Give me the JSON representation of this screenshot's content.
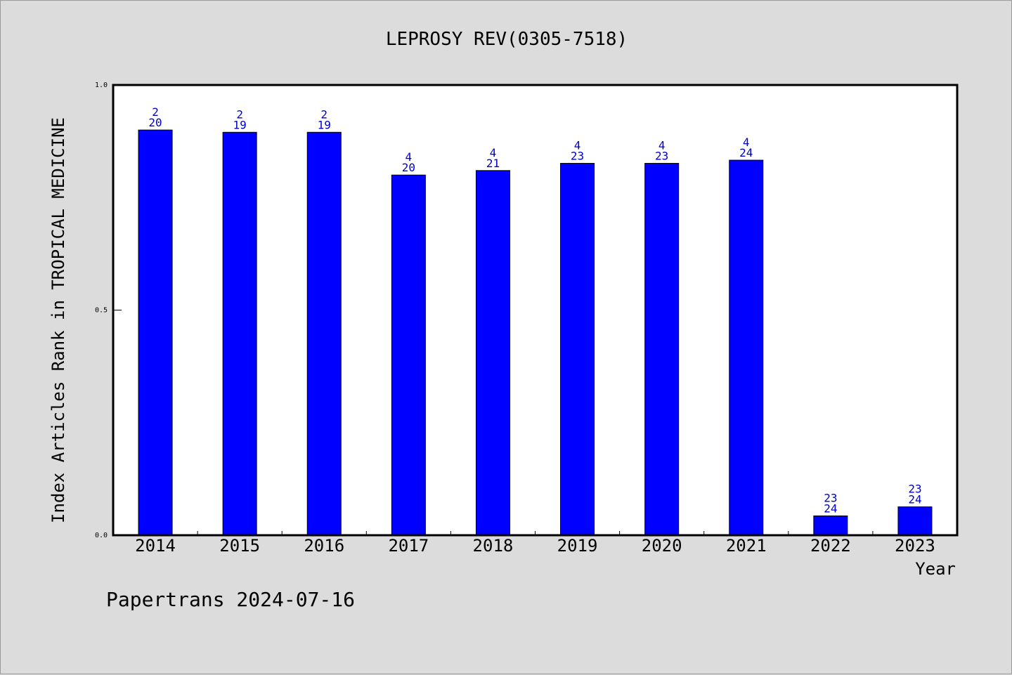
{
  "chart_data": {
    "type": "bar",
    "title": "LEPROSY REV(0305-7518)",
    "xlabel": "Year",
    "ylabel": "Index Articles Rank in TROPICAL MEDICINE",
    "ylim": [
      0,
      1
    ],
    "yticks": [
      "0.0",
      "0.5",
      "1.0"
    ],
    "categories": [
      "2014",
      "2015",
      "2016",
      "2017",
      "2018",
      "2019",
      "2020",
      "2021",
      "2022",
      "2023"
    ],
    "values": [
      0.9,
      0.895,
      0.895,
      0.8,
      0.81,
      0.826,
      0.826,
      0.833,
      0.043,
      0.063
    ],
    "label_top": [
      "2",
      "2",
      "2",
      "4",
      "4",
      "4",
      "4",
      "4",
      "23",
      "23"
    ],
    "label_bottom": [
      "20",
      "19",
      "19",
      "20",
      "21",
      "23",
      "23",
      "24",
      "24",
      "24"
    ],
    "grid": false,
    "bar_color": "#0000ff",
    "label_color": "#0000cc"
  },
  "footer": "Papertrans 2024-07-16"
}
